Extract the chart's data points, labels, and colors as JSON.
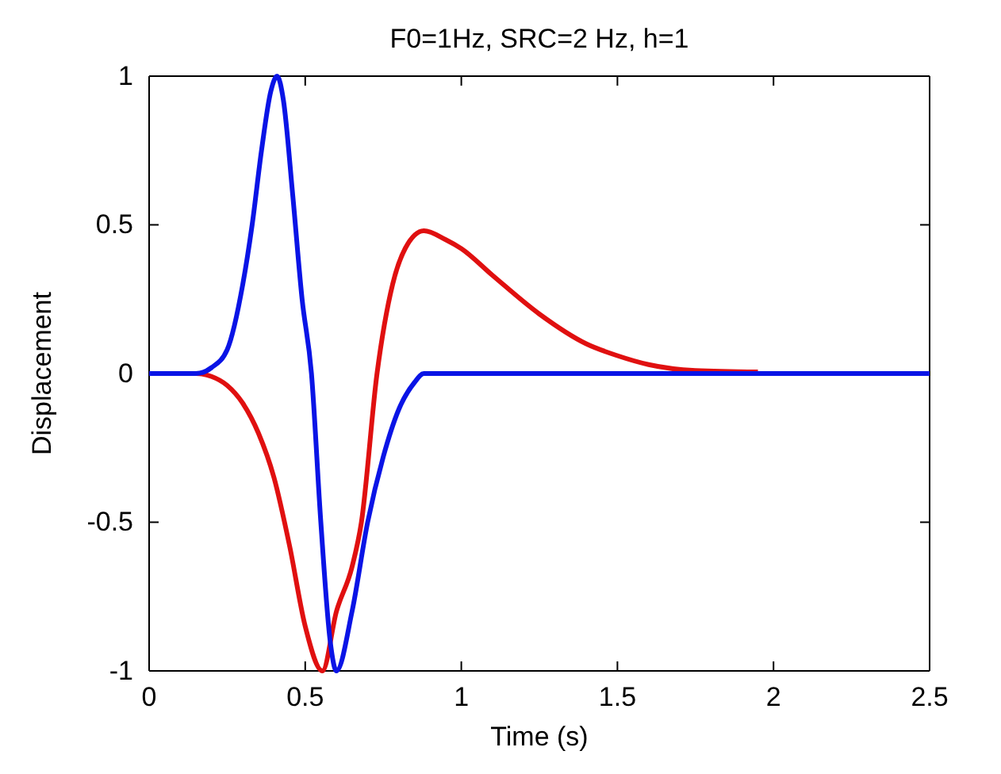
{
  "chart_data": {
    "type": "line",
    "title": "F0=1Hz, SRC=2 Hz, h=1",
    "xlabel": "Time (s)",
    "ylabel": "Displacement",
    "xlim": [
      0,
      2.5
    ],
    "xticks": [
      0,
      0.5,
      1,
      1.5,
      2,
      2.5
    ],
    "ylim": [
      -1,
      1
    ],
    "yticks": [
      -1,
      -0.5,
      0,
      0.5,
      1
    ],
    "grid": false,
    "marker": "none",
    "line_style": "solid",
    "series": [
      {
        "color": "#e01010",
        "x": [
          0,
          0.15,
          0.2,
          0.25,
          0.3,
          0.35,
          0.4,
          0.45,
          0.5,
          0.555,
          0.6,
          0.65,
          0.68,
          0.73,
          0.78,
          0.82,
          0.88,
          0.95,
          1.0,
          1.1,
          1.25,
          1.4,
          1.5,
          1.6,
          1.75,
          1.95
        ],
        "values": [
          0,
          0,
          -0.01,
          -0.04,
          -0.1,
          -0.2,
          -0.35,
          -0.58,
          -0.85,
          -1,
          -0.8,
          -0.65,
          -0.5,
          0,
          0.3,
          0.42,
          0.48,
          0.45,
          0.42,
          0.33,
          0.2,
          0.1,
          0.06,
          0.03,
          0.01,
          0.005
        ]
      },
      {
        "color": "#0a14e6",
        "x": [
          0,
          0.15,
          0.2,
          0.25,
          0.3,
          0.33,
          0.36,
          0.39,
          0.41,
          0.43,
          0.46,
          0.49,
          0.52,
          0.55,
          0.58,
          0.6,
          0.65,
          0.7,
          0.75,
          0.8,
          0.85,
          0.88,
          2.5
        ],
        "values": [
          0,
          0,
          0.02,
          0.08,
          0.3,
          0.5,
          0.75,
          0.95,
          1,
          0.92,
          0.6,
          0.25,
          0,
          -0.5,
          -0.9,
          -1,
          -0.8,
          -0.5,
          -0.28,
          -0.12,
          -0.03,
          0,
          0
        ]
      }
    ]
  }
}
